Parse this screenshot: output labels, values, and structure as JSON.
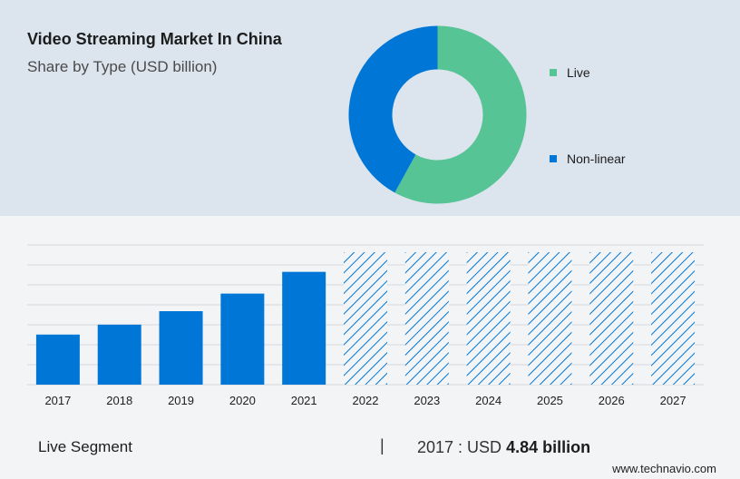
{
  "header": {
    "title": "Video Streaming Market In China",
    "subtitle": "Share by Type (USD billion)"
  },
  "chart_data": [
    {
      "type": "pie",
      "variant": "donut",
      "labels": [
        "Live",
        "Non-linear"
      ],
      "values": [
        58,
        42
      ],
      "colors": [
        "#56c495",
        "#0077d6"
      ],
      "legend_position": "right"
    },
    {
      "type": "bar",
      "categories": [
        "2017",
        "2018",
        "2019",
        "2020",
        "2021",
        "2022",
        "2023",
        "2024",
        "2025",
        "2026",
        "2027"
      ],
      "values": [
        4.84,
        5.8,
        7.1,
        8.8,
        10.9,
        12.8,
        12.8,
        12.8,
        12.8,
        12.8,
        12.8
      ],
      "forecast_from": "2022",
      "bar_color": "#0077d6",
      "forecast_color": "#0077d6",
      "ylim": [
        0,
        13.5
      ],
      "grid": true
    }
  ],
  "footer": {
    "segment_label": "Live Segment",
    "separator": "|",
    "stat_prefix": "2017 : USD",
    "stat_value": "4.84 billion"
  },
  "brand": "www.technavio.com"
}
